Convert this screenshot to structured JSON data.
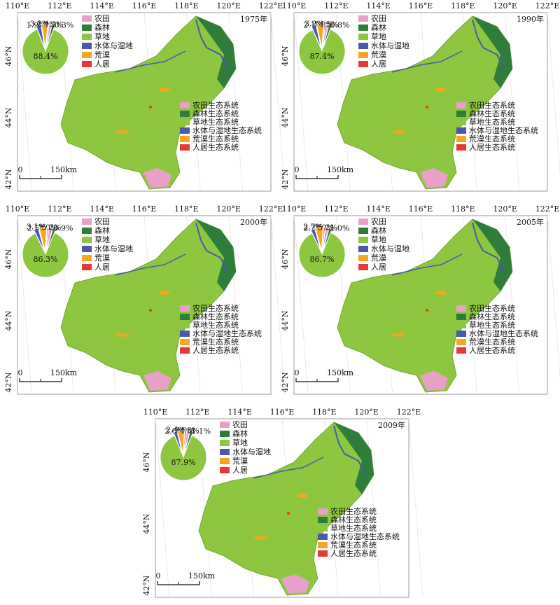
{
  "categories": [
    "农田",
    "森林",
    "草地",
    "水体与湿地",
    "荒漠",
    "人居"
  ],
  "colors": [
    "#e8a0c8",
    "#2e7d3a",
    "#8dc63f",
    "#4a5aa8",
    "#f5a623",
    "#e53935"
  ],
  "ecosystems": [
    "农田生态系统",
    "森林生态系统",
    "草地生态系统",
    "水体与湿地生态系统",
    "荒漠生态系统",
    "人居生态系统"
  ],
  "x_ticks": [
    "110°E",
    "112°E",
    "114°E",
    "116°E",
    "118°E",
    "120°E",
    "122°E"
  ],
  "y_ticks": [
    "46°N",
    "44°N",
    "42°N"
  ],
  "scale": {
    "zero": "0",
    "distance": "150km"
  },
  "panels": [
    {
      "year": "1975年",
      "values": [
        1.9,
        1.9,
        88.4,
        3.2,
        4.2,
        0.3
      ],
      "labels": [
        "1.9%",
        "1.9%",
        "88.4%",
        "3.2%",
        "4.2%",
        "0.3%"
      ]
    },
    {
      "year": "1990年",
      "values": [
        2.1,
        1.9,
        87.4,
        3.2,
        4.5,
        0.8
      ],
      "labels": [
        "2.1%",
        "1.9%",
        "87.4%",
        "3.2%",
        "4.5%",
        "0.8%"
      ]
    },
    {
      "year": "2000年",
      "values": [
        2.5,
        2.0,
        86.3,
        3.1,
        5.2,
        0.9
      ],
      "labels": [
        "2.5%",
        "2.0%",
        "86.3%",
        "3.1%",
        "5.2%",
        "0.9%"
      ]
    },
    {
      "year": "2005年",
      "values": [
        2.3,
        2.0,
        86.7,
        2.7,
        5.2,
        1.0
      ],
      "labels": [
        "2.3%",
        "2.0%",
        "86.7%",
        "2.7%",
        "5.2%",
        "1.0%"
      ]
    },
    {
      "year": "2009年",
      "values": [
        2.0,
        2.0,
        87.9,
        2.4,
        4.6,
        1.1
      ],
      "labels": [
        "2.0%",
        "2.0%",
        "87.9%",
        "2.4%",
        "4.6%",
        "1.1%"
      ]
    }
  ]
}
